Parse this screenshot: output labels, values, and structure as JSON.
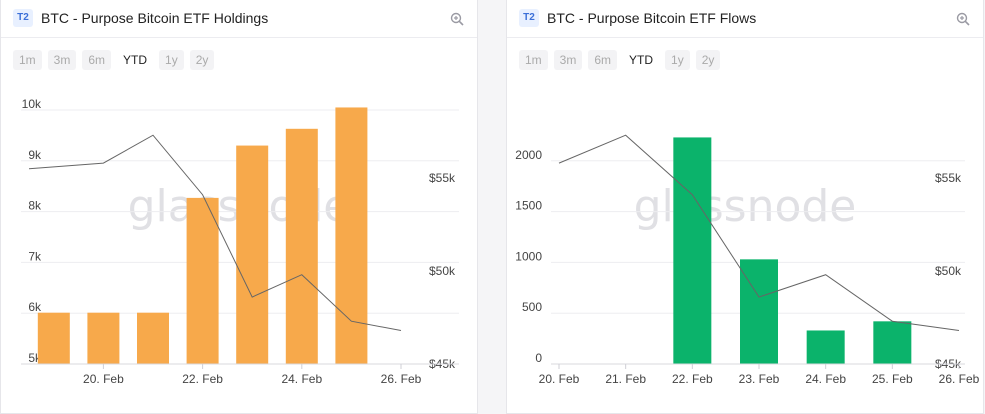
{
  "left": {
    "tier": "T2",
    "title": "BTC - Purpose Bitcoin ETF Holdings",
    "ranges": [
      "1m",
      "3m",
      "6m",
      "YTD",
      "1y",
      "2y"
    ],
    "active_range": "YTD",
    "watermark": "glassnode"
  },
  "right": {
    "tier": "T2",
    "title": "BTC - Purpose Bitcoin ETF Flows",
    "ranges": [
      "1m",
      "3m",
      "6m",
      "YTD",
      "1y",
      "2y"
    ],
    "active_range": "YTD",
    "watermark": "glassnode"
  },
  "chart_data": [
    {
      "type": "bar",
      "title": "BTC - Purpose Bitcoin ETF Holdings",
      "bar_color": "#f7a94b",
      "line_color": "#666666",
      "x_ticks": [
        "20. Feb",
        "22. Feb",
        "24. Feb",
        "26. Feb"
      ],
      "y_ticks": [
        "5k",
        "6k",
        "7k",
        "8k",
        "9k",
        "10k"
      ],
      "y2_ticks": [
        "$45k",
        "$50k",
        "$55k"
      ],
      "ylim": [
        5000,
        10000
      ],
      "y2lim": [
        45000,
        55000
      ],
      "xlim": [
        "18.5 Feb",
        "26 Feb"
      ],
      "bars": [
        {
          "x": "19. Feb",
          "value": 6010
        },
        {
          "x": "20. Feb",
          "value": 6010
        },
        {
          "x": "21. Feb",
          "value": 6010
        },
        {
          "x": "22. Feb",
          "value": 8270
        },
        {
          "x": "23. Feb",
          "value": 9300
        },
        {
          "x": "24. Feb",
          "value": 9630
        },
        {
          "x": "25. Feb",
          "value": 10050
        }
      ],
      "price_line": [
        {
          "x": "18.5 Feb",
          "value": 55500
        },
        {
          "x": "20. Feb",
          "value": 55800
        },
        {
          "x": "21. Feb",
          "value": 57300
        },
        {
          "x": "22. Feb",
          "value": 54100
        },
        {
          "x": "23. Feb",
          "value": 48600
        },
        {
          "x": "24. Feb",
          "value": 49800
        },
        {
          "x": "25. Feb",
          "value": 47300
        },
        {
          "x": "26. Feb",
          "value": 46800
        }
      ]
    },
    {
      "type": "bar",
      "title": "BTC - Purpose Bitcoin ETF Flows",
      "bar_color": "#0bb36b",
      "line_color": "#666666",
      "x_ticks": [
        "20. Feb",
        "21. Feb",
        "22. Feb",
        "23. Feb",
        "24. Feb",
        "25. Feb",
        "26. Feb"
      ],
      "y_ticks": [
        "0",
        "500",
        "1000",
        "1500",
        "2000"
      ],
      "y2_ticks": [
        "$45k",
        "$50k",
        "$55k"
      ],
      "ylim": [
        0,
        2500
      ],
      "y2lim": [
        45000,
        55000
      ],
      "xlim": [
        "20. Feb",
        "26. Feb"
      ],
      "bars": [
        {
          "x": "20. Feb",
          "value": 0
        },
        {
          "x": "21. Feb",
          "value": 0
        },
        {
          "x": "22. Feb",
          "value": 2230
        },
        {
          "x": "23. Feb",
          "value": 1030
        },
        {
          "x": "24. Feb",
          "value": 330
        },
        {
          "x": "25. Feb",
          "value": 420
        }
      ],
      "price_line": [
        {
          "x": "20. Feb",
          "value": 55800
        },
        {
          "x": "21. Feb",
          "value": 57300
        },
        {
          "x": "22. Feb",
          "value": 54100
        },
        {
          "x": "23. Feb",
          "value": 48600
        },
        {
          "x": "24. Feb",
          "value": 49800
        },
        {
          "x": "25. Feb",
          "value": 47300
        },
        {
          "x": "26. Feb",
          "value": 46800
        }
      ]
    }
  ]
}
